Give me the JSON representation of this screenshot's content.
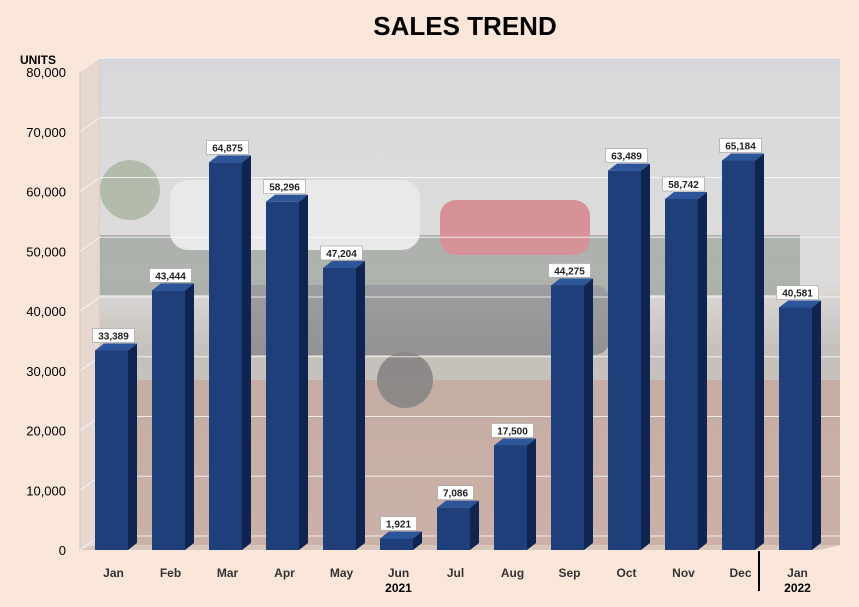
{
  "chart_data": {
    "type": "bar",
    "title": "SALES TREND",
    "ylabel": "UNITS",
    "xlabel": "",
    "ylim": [
      0,
      80000
    ],
    "yticks": [
      0,
      10000,
      20000,
      30000,
      40000,
      50000,
      60000,
      70000,
      80000
    ],
    "ytick_labels": [
      "0",
      "10,000",
      "20,000",
      "30,000",
      "40,000",
      "50,000",
      "60,000",
      "70,000",
      "80,000"
    ],
    "grid": true,
    "legend": "none",
    "categories": [
      "Jan",
      "Feb",
      "Mar",
      "Apr",
      "May",
      "Jun",
      "Jul",
      "Aug",
      "Sep",
      "Oct",
      "Nov",
      "Dec",
      "Jan"
    ],
    "values": [
      33389,
      43444,
      64875,
      58296,
      47204,
      1921,
      7086,
      17500,
      44275,
      63489,
      58742,
      65184,
      40581
    ],
    "value_labels": [
      "33,389",
      "43,444",
      "64,875",
      "58,296",
      "47,204",
      "1,921",
      "7,086",
      "17,500",
      "44,275",
      "63,489",
      "58,742",
      "65,184",
      "40,581"
    ],
    "year_groups": [
      {
        "label": "2021",
        "from": 0,
        "to": 11
      },
      {
        "label": "2022",
        "from": 12,
        "to": 12
      }
    ]
  },
  "colors": {
    "bar_front": "#1f3f7a",
    "bar_side": "#0f2450",
    "bar_top": "#2d5599",
    "background": "#fbe7da",
    "plot_photo_tint": "#9fa3a8"
  }
}
